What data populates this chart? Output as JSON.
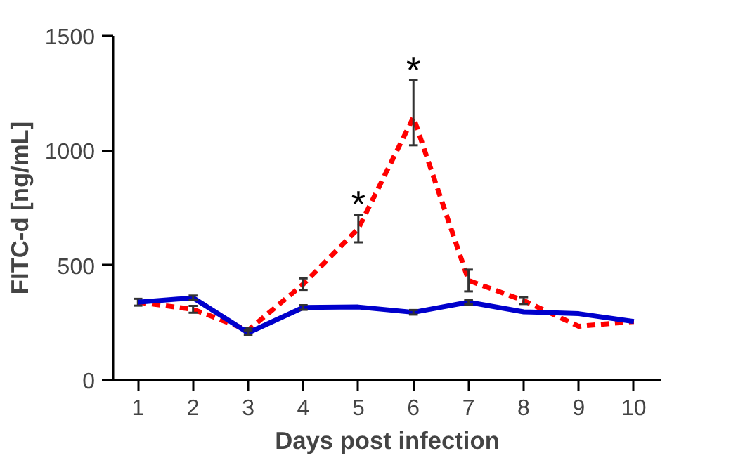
{
  "chart_data": {
    "type": "line",
    "xlabel": "Days post infection",
    "ylabel": "FITC-d [ng/mL]",
    "x": [
      1,
      2,
      3,
      4,
      5,
      6,
      7,
      8,
      9,
      10
    ],
    "xlim": [
      0.55,
      10.5
    ],
    "xticks": [
      1,
      2,
      3,
      4,
      5,
      6,
      7,
      8,
      9,
      10
    ],
    "ylim": [
      0,
      1500
    ],
    "yticks": [
      0,
      500,
      1000,
      1500
    ],
    "grid": false,
    "marker": "none",
    "series": [
      {
        "color": "#ff0000",
        "line_style": "dashed",
        "values": [
          339,
          308,
          217,
          418,
          660,
          1145,
          434,
          346,
          234,
          255
        ],
        "errors": [
          15,
          15,
          10,
          25,
          60,
          [
            1023,
            1308
          ],
          [
            386,
            481
          ],
          15,
          null,
          null
        ]
      },
      {
        "color": "#0000cc",
        "line_style": "solid",
        "values": [
          339,
          358,
          206,
          316,
          318,
          295,
          339,
          297,
          289,
          255
        ],
        "errors": [
          null,
          10,
          10,
          10,
          null,
          10,
          10,
          null,
          null,
          null
        ]
      }
    ],
    "annotations": [
      {
        "text": "*",
        "x": 5,
        "y": 722
      },
      {
        "text": "*",
        "x": 6,
        "y": 1308
      }
    ]
  }
}
